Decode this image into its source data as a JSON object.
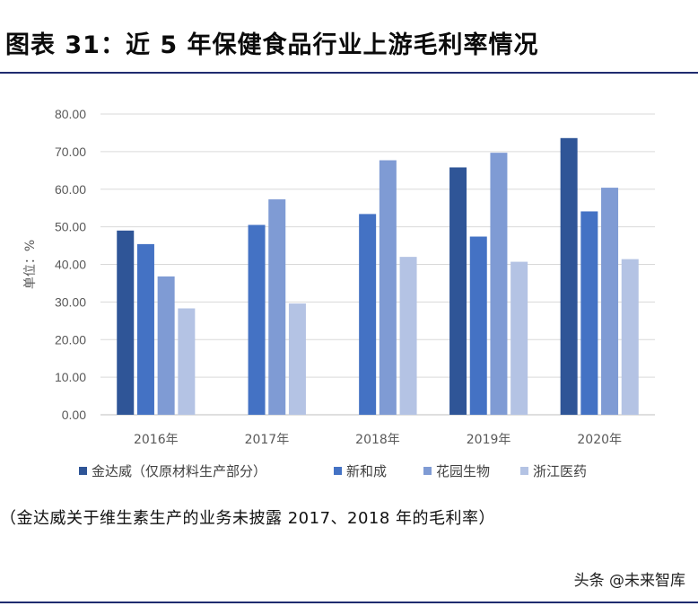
{
  "header": {
    "title": "图表 31：近 5 年保健食品行业上游毛利率情况"
  },
  "chart_data": {
    "type": "bar",
    "title": "",
    "xlabel": "",
    "ylabel": "单位：%",
    "ylim": [
      0,
      80
    ],
    "yticks": [
      "0.00",
      "10.00",
      "20.00",
      "30.00",
      "40.00",
      "50.00",
      "60.00",
      "70.00",
      "80.00"
    ],
    "grid": true,
    "legend_position": "bottom",
    "categories": [
      "2016年",
      "2017年",
      "2018年",
      "2019年",
      "2020年"
    ],
    "series": [
      {
        "name": "金达威（仅原材料生产部分）",
        "color": "#2f5597",
        "values": [
          49.0,
          null,
          null,
          65.8,
          73.6
        ]
      },
      {
        "name": "新和成",
        "color": "#4472c4",
        "values": [
          45.4,
          50.5,
          53.4,
          47.4,
          54.1
        ]
      },
      {
        "name": "花园生物",
        "color": "#7f9bd4",
        "values": [
          36.8,
          57.3,
          67.7,
          69.7,
          60.4
        ]
      },
      {
        "name": "浙江医药",
        "color": "#b4c3e4",
        "values": [
          28.3,
          29.6,
          42.0,
          40.7,
          41.4
        ]
      }
    ]
  },
  "footnote": {
    "text": "（金达威关于维生素生产的业务未披露 2017、2018 年的毛利率）"
  },
  "watermark": {
    "text": "头条 @未来智库"
  }
}
